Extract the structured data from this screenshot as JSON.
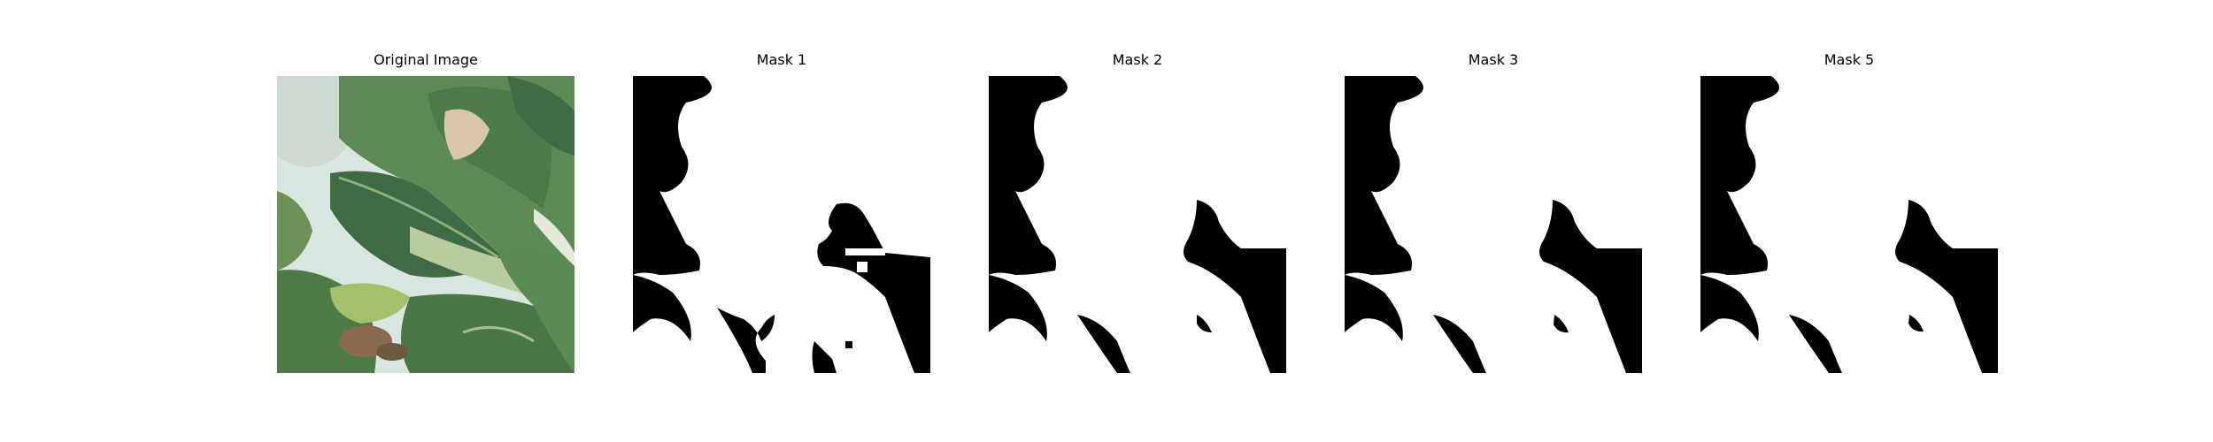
{
  "figure": {
    "panels": [
      {
        "title": "Original Image",
        "kind": "photo"
      },
      {
        "title": "Mask 1",
        "kind": "mask"
      },
      {
        "title": "Mask 2",
        "kind": "mask"
      },
      {
        "title": "Mask 3",
        "kind": "mask"
      },
      {
        "title": "Mask 5",
        "kind": "mask"
      }
    ]
  },
  "colors": {
    "mask_foreground": "#ffffff",
    "mask_background": "#000000",
    "leaf_dark": "#3f6a44",
    "leaf_mid": "#5e8a55",
    "leaf_light": "#9fbd7d",
    "background_pale": "#d7e3dc"
  }
}
